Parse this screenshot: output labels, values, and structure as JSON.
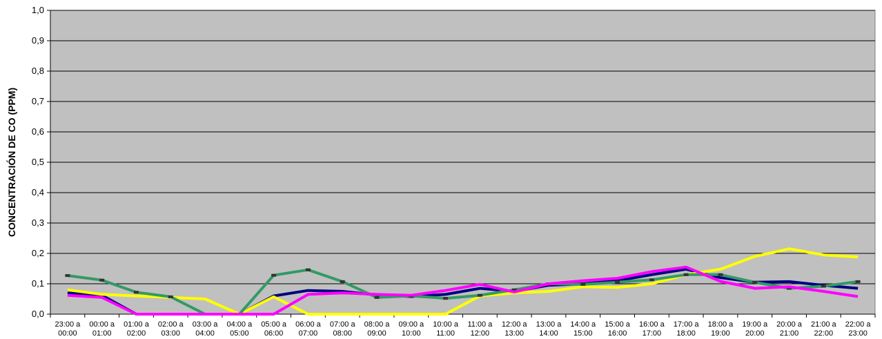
{
  "chart_data": {
    "type": "line",
    "title": "",
    "xlabel": "",
    "ylabel": "CONCENTRACIÓN DE CO (PPM)",
    "ylim": [
      0,
      1
    ],
    "yticks": [
      "0,0",
      "0,1",
      "0,2",
      "0,3",
      "0,4",
      "0,5",
      "0,6",
      "0,7",
      "0,8",
      "0,9",
      "1,0"
    ],
    "categories": [
      [
        "23:00 a",
        "00:00"
      ],
      [
        "00:00 a",
        "01:00"
      ],
      [
        "01:00 a",
        "02:00"
      ],
      [
        "02:00 a",
        "03:00"
      ],
      [
        "03:00 a",
        "04:00"
      ],
      [
        "04:00 a",
        "05:00"
      ],
      [
        "05:00 a",
        "06:00"
      ],
      [
        "06:00 a",
        "07:00"
      ],
      [
        "07:00 a",
        "08:00"
      ],
      [
        "08:00 a",
        "09:00"
      ],
      [
        "09:00 a",
        "10:00"
      ],
      [
        "10:00 a",
        "11:00"
      ],
      [
        "11:00 a",
        "12:00"
      ],
      [
        "12:00 a",
        "13:00"
      ],
      [
        "13:00 a",
        "14:00"
      ],
      [
        "14:00 a",
        "15:00"
      ],
      [
        "15:00 a",
        "16:00"
      ],
      [
        "16:00 a",
        "17:00"
      ],
      [
        "17:00 a",
        "18:00"
      ],
      [
        "18:00 a",
        "19:00"
      ],
      [
        "19:00 a",
        "20:00"
      ],
      [
        "20:00 a",
        "21:00"
      ],
      [
        "21:00 a",
        "22:00"
      ],
      [
        "22:00 a",
        "23:00"
      ]
    ],
    "grid": true,
    "plot_background": "#c0c0c0",
    "series": [
      {
        "color": "#000080",
        "markers": false,
        "values": [
          0.07,
          0.062,
          0.0,
          0.0,
          0.0,
          0.0,
          0.06,
          0.078,
          0.075,
          0.063,
          0.058,
          0.065,
          0.085,
          0.075,
          0.095,
          0.1,
          0.11,
          0.13,
          0.148,
          0.12,
          0.105,
          0.107,
          0.095,
          0.085
        ]
      },
      {
        "color": "#ffff00",
        "markers": false,
        "values": [
          0.08,
          0.065,
          0.06,
          0.055,
          0.05,
          0.0,
          0.057,
          0.0,
          0.0,
          0.0,
          0.0,
          0.0,
          0.06,
          0.07,
          0.075,
          0.09,
          0.088,
          0.1,
          0.13,
          0.148,
          0.19,
          0.215,
          0.195,
          0.188
        ]
      },
      {
        "color": "#339966",
        "markers": true,
        "values": [
          0.127,
          0.112,
          0.072,
          0.057,
          0.0,
          0.0,
          0.128,
          0.146,
          0.107,
          0.055,
          0.06,
          0.052,
          0.062,
          0.08,
          0.1,
          0.098,
          0.105,
          0.113,
          0.13,
          0.13,
          0.105,
          0.085,
          0.092,
          0.107
        ]
      },
      {
        "color": "#ff00ff",
        "markers": false,
        "values": [
          0.062,
          0.055,
          0.0,
          0.0,
          0.0,
          0.0,
          0.0,
          0.065,
          0.07,
          0.065,
          0.062,
          0.078,
          0.098,
          0.073,
          0.1,
          0.11,
          0.118,
          0.14,
          0.155,
          0.108,
          0.085,
          0.09,
          0.075,
          0.058
        ]
      }
    ]
  }
}
